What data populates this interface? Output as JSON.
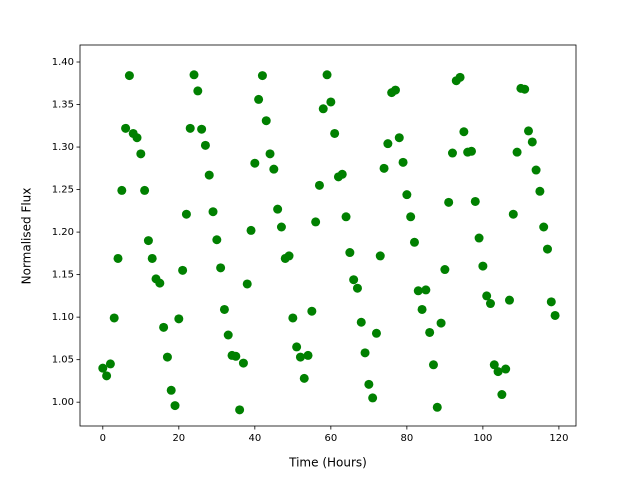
{
  "chart_data": {
    "type": "scatter",
    "x_label": "Time (Hours)",
    "y_label": "Normalised Flux",
    "color": "#008000",
    "x": [
      0,
      1,
      2,
      3,
      4,
      5,
      6,
      7,
      8,
      9,
      10,
      11,
      12,
      13,
      14,
      15,
      16,
      17,
      18,
      19,
      20,
      21,
      22,
      23,
      24,
      25,
      26,
      27,
      28,
      29,
      30,
      31,
      32,
      33,
      34,
      35,
      36,
      37,
      38,
      39,
      40,
      41,
      42,
      43,
      44,
      45,
      46,
      47,
      48,
      49,
      50,
      51,
      52,
      53,
      54,
      55,
      56,
      57,
      58,
      59,
      60,
      61,
      62,
      63,
      64,
      65,
      66,
      67,
      68,
      69,
      70,
      71,
      72,
      73,
      74,
      75,
      76,
      77,
      78,
      79,
      80,
      81,
      82,
      83,
      84,
      85,
      86,
      87,
      88,
      89,
      90,
      91,
      92,
      93,
      94,
      95,
      96,
      97,
      98,
      99,
      100,
      101,
      102,
      103,
      104,
      105,
      106,
      107,
      108,
      109,
      110,
      111,
      112,
      113,
      114,
      115,
      116,
      117,
      118,
      119
    ],
    "values": [
      1.04,
      1.031,
      1.045,
      1.099,
      1.169,
      1.249,
      1.322,
      1.384,
      1.316,
      1.311,
      1.292,
      1.249,
      1.19,
      1.169,
      1.145,
      1.14,
      1.088,
      1.053,
      1.014,
      0.996,
      1.098,
      1.155,
      1.221,
      1.322,
      1.385,
      1.366,
      1.321,
      1.302,
      1.267,
      1.224,
      1.191,
      1.158,
      1.109,
      1.079,
      1.055,
      1.054,
      0.991,
      1.046,
      1.139,
      1.202,
      1.281,
      1.356,
      1.384,
      1.331,
      1.292,
      1.274,
      1.227,
      1.206,
      1.169,
      1.172,
      1.099,
      1.065,
      1.053,
      1.028,
      1.055,
      1.107,
      1.212,
      1.255,
      1.345,
      1.385,
      1.353,
      1.316,
      1.265,
      1.268,
      1.218,
      1.176,
      1.144,
      1.134,
      1.094,
      1.058,
      1.021,
      1.005,
      1.081,
      1.172,
      1.275,
      1.304,
      1.364,
      1.367,
      1.311,
      1.282,
      1.244,
      1.218,
      1.188,
      1.131,
      1.109,
      1.132,
      1.082,
      1.044,
      0.994,
      1.093,
      1.156,
      1.235,
      1.293,
      1.378,
      1.382,
      1.318,
      1.294,
      1.295,
      1.236,
      1.193,
      1.16,
      1.125,
      1.116,
      1.044,
      1.036,
      1.009,
      1.039,
      1.12,
      1.221,
      1.294,
      1.369,
      1.368,
      1.319,
      1.306,
      1.273,
      1.248,
      1.206,
      1.18,
      1.118,
      1.102
    ],
    "xlim": [
      -6,
      124.5
    ],
    "xticks": [
      0,
      20,
      40,
      60,
      80,
      100,
      120
    ],
    "ylim": [
      0.972,
      1.42
    ],
    "yticks": [
      {
        "value": 1.0,
        "label": "1.00"
      },
      1.05,
      {
        "value": 1.1,
        "label": "1.10"
      },
      1.15,
      {
        "value": 1.2,
        "label": "1.20"
      },
      1.25,
      {
        "value": 1.3,
        "label": "1.30"
      },
      1.35,
      {
        "value": 1.4,
        "label": "1.40"
      }
    ]
  }
}
